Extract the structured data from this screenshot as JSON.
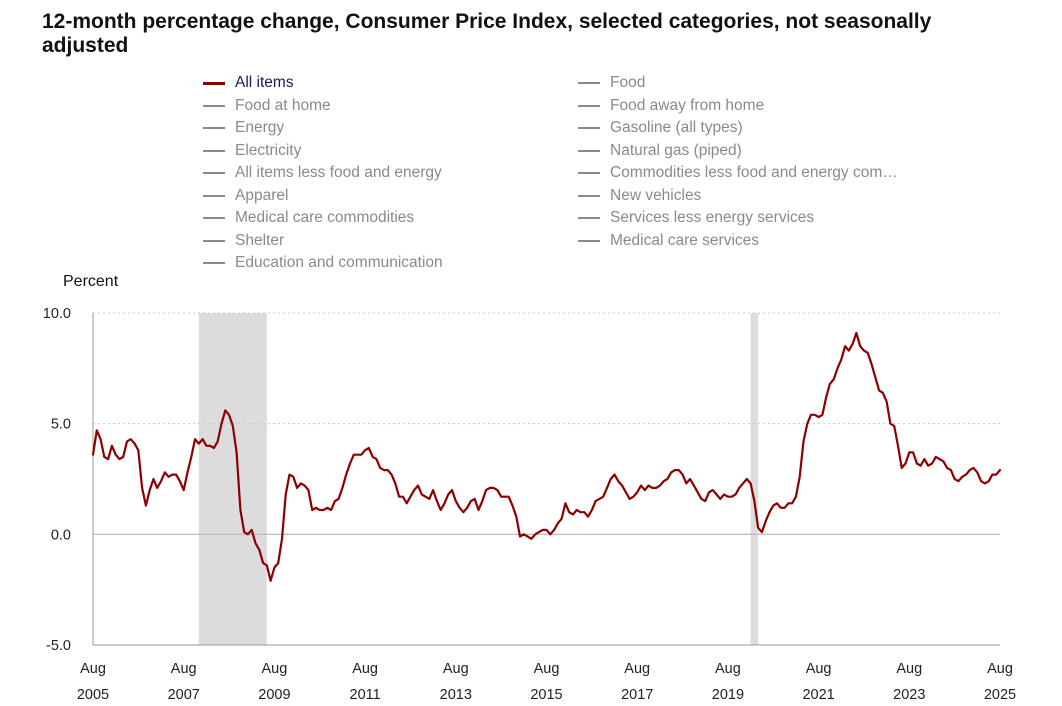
{
  "title": "12-month percentage change, Consumer Price Index, selected categories, not seasonally adjusted",
  "legend": {
    "left": [
      {
        "label": "All items",
        "active": true
      },
      {
        "label": "Food at home",
        "active": false
      },
      {
        "label": "Energy",
        "active": false
      },
      {
        "label": "Electricity",
        "active": false
      },
      {
        "label": "All items less food and energy",
        "active": false
      },
      {
        "label": "Apparel",
        "active": false
      },
      {
        "label": "Medical care commodities",
        "active": false
      },
      {
        "label": "Shelter",
        "active": false
      },
      {
        "label": "Education and communication",
        "active": false
      }
    ],
    "right": [
      {
        "label": "Food",
        "active": false
      },
      {
        "label": "Food away from home",
        "active": false
      },
      {
        "label": "Gasoline (all types)",
        "active": false
      },
      {
        "label": "Natural gas (piped)",
        "active": false
      },
      {
        "label": "Commodities less food and energy com…",
        "active": false
      },
      {
        "label": "New vehicles",
        "active": false
      },
      {
        "label": "Services less energy services",
        "active": false
      },
      {
        "label": "Medical care services",
        "active": false
      }
    ]
  },
  "colors": {
    "active_series": "#8b0000",
    "inactive": "#8a8a8a",
    "recession": "#dcdcdc",
    "grid": "#c8c8c8"
  },
  "chart_data": {
    "type": "line",
    "ylabel": "Percent",
    "ylim": [
      -5.0,
      10.0
    ],
    "yticks": [
      "10.0",
      "5.0",
      "0.0",
      "-5.0"
    ],
    "xlim": [
      "2005-08",
      "2025-08"
    ],
    "xticks": [
      {
        "month": "Aug",
        "year": "2005"
      },
      {
        "month": "Aug",
        "year": "2007"
      },
      {
        "month": "Aug",
        "year": "2009"
      },
      {
        "month": "Aug",
        "year": "2011"
      },
      {
        "month": "Aug",
        "year": "2013"
      },
      {
        "month": "Aug",
        "year": "2015"
      },
      {
        "month": "Aug",
        "year": "2017"
      },
      {
        "month": "Aug",
        "year": "2019"
      },
      {
        "month": "Aug",
        "year": "2021"
      },
      {
        "month": "Aug",
        "year": "2023"
      },
      {
        "month": "Aug",
        "year": "2025"
      }
    ],
    "recessions": [
      [
        "2007-12",
        "2009-06"
      ],
      [
        "2020-02",
        "2020-04"
      ]
    ],
    "series": [
      {
        "name": "All items",
        "points": [
          [
            "2005-08",
            3.6
          ],
          [
            "2005-09",
            4.7
          ],
          [
            "2005-10",
            4.3
          ],
          [
            "2005-11",
            3.5
          ],
          [
            "2005-12",
            3.4
          ],
          [
            "2006-01",
            4.0
          ],
          [
            "2006-02",
            3.6
          ],
          [
            "2006-03",
            3.4
          ],
          [
            "2006-04",
            3.5
          ],
          [
            "2006-05",
            4.2
          ],
          [
            "2006-06",
            4.3
          ],
          [
            "2006-07",
            4.1
          ],
          [
            "2006-08",
            3.8
          ],
          [
            "2006-09",
            2.1
          ],
          [
            "2006-10",
            1.3
          ],
          [
            "2006-11",
            2.0
          ],
          [
            "2006-12",
            2.5
          ],
          [
            "2007-01",
            2.1
          ],
          [
            "2007-02",
            2.4
          ],
          [
            "2007-03",
            2.8
          ],
          [
            "2007-04",
            2.6
          ],
          [
            "2007-05",
            2.7
          ],
          [
            "2007-06",
            2.7
          ],
          [
            "2007-07",
            2.4
          ],
          [
            "2007-08",
            2.0
          ],
          [
            "2007-09",
            2.8
          ],
          [
            "2007-10",
            3.5
          ],
          [
            "2007-11",
            4.3
          ],
          [
            "2007-12",
            4.1
          ],
          [
            "2008-01",
            4.3
          ],
          [
            "2008-02",
            4.0
          ],
          [
            "2008-03",
            4.0
          ],
          [
            "2008-04",
            3.9
          ],
          [
            "2008-05",
            4.2
          ],
          [
            "2008-06",
            5.0
          ],
          [
            "2008-07",
            5.6
          ],
          [
            "2008-08",
            5.4
          ],
          [
            "2008-09",
            4.9
          ],
          [
            "2008-10",
            3.7
          ],
          [
            "2008-11",
            1.1
          ],
          [
            "2008-12",
            0.1
          ],
          [
            "2009-01",
            0.0
          ],
          [
            "2009-02",
            0.2
          ],
          [
            "2009-03",
            -0.4
          ],
          [
            "2009-04",
            -0.7
          ],
          [
            "2009-05",
            -1.3
          ],
          [
            "2009-06",
            -1.4
          ],
          [
            "2009-07",
            -2.1
          ],
          [
            "2009-08",
            -1.5
          ],
          [
            "2009-09",
            -1.3
          ],
          [
            "2009-10",
            -0.2
          ],
          [
            "2009-11",
            1.8
          ],
          [
            "2009-12",
            2.7
          ],
          [
            "2010-01",
            2.6
          ],
          [
            "2010-02",
            2.1
          ],
          [
            "2010-03",
            2.3
          ],
          [
            "2010-04",
            2.2
          ],
          [
            "2010-05",
            2.0
          ],
          [
            "2010-06",
            1.1
          ],
          [
            "2010-07",
            1.2
          ],
          [
            "2010-08",
            1.1
          ],
          [
            "2010-09",
            1.1
          ],
          [
            "2010-10",
            1.2
          ],
          [
            "2010-11",
            1.1
          ],
          [
            "2010-12",
            1.5
          ],
          [
            "2011-01",
            1.6
          ],
          [
            "2011-02",
            2.1
          ],
          [
            "2011-03",
            2.7
          ],
          [
            "2011-04",
            3.2
          ],
          [
            "2011-05",
            3.6
          ],
          [
            "2011-06",
            3.6
          ],
          [
            "2011-07",
            3.6
          ],
          [
            "2011-08",
            3.8
          ],
          [
            "2011-09",
            3.9
          ],
          [
            "2011-10",
            3.5
          ],
          [
            "2011-11",
            3.4
          ],
          [
            "2011-12",
            3.0
          ],
          [
            "2012-01",
            2.9
          ],
          [
            "2012-02",
            2.9
          ],
          [
            "2012-03",
            2.7
          ],
          [
            "2012-04",
            2.3
          ],
          [
            "2012-05",
            1.7
          ],
          [
            "2012-06",
            1.7
          ],
          [
            "2012-07",
            1.4
          ],
          [
            "2012-08",
            1.7
          ],
          [
            "2012-09",
            2.0
          ],
          [
            "2012-10",
            2.2
          ],
          [
            "2012-11",
            1.8
          ],
          [
            "2012-12",
            1.7
          ],
          [
            "2013-01",
            1.6
          ],
          [
            "2013-02",
            2.0
          ],
          [
            "2013-03",
            1.5
          ],
          [
            "2013-04",
            1.1
          ],
          [
            "2013-05",
            1.4
          ],
          [
            "2013-06",
            1.8
          ],
          [
            "2013-07",
            2.0
          ],
          [
            "2013-08",
            1.5
          ],
          [
            "2013-09",
            1.2
          ],
          [
            "2013-10",
            1.0
          ],
          [
            "2013-11",
            1.2
          ],
          [
            "2013-12",
            1.5
          ],
          [
            "2014-01",
            1.6
          ],
          [
            "2014-02",
            1.1
          ],
          [
            "2014-03",
            1.5
          ],
          [
            "2014-04",
            2.0
          ],
          [
            "2014-05",
            2.1
          ],
          [
            "2014-06",
            2.1
          ],
          [
            "2014-07",
            2.0
          ],
          [
            "2014-08",
            1.7
          ],
          [
            "2014-09",
            1.7
          ],
          [
            "2014-10",
            1.7
          ],
          [
            "2014-11",
            1.3
          ],
          [
            "2014-12",
            0.8
          ],
          [
            "2015-01",
            -0.1
          ],
          [
            "2015-02",
            0.0
          ],
          [
            "2015-03",
            -0.1
          ],
          [
            "2015-04",
            -0.2
          ],
          [
            "2015-05",
            0.0
          ],
          [
            "2015-06",
            0.1
          ],
          [
            "2015-07",
            0.2
          ],
          [
            "2015-08",
            0.2
          ],
          [
            "2015-09",
            0.0
          ],
          [
            "2015-10",
            0.2
          ],
          [
            "2015-11",
            0.5
          ],
          [
            "2015-12",
            0.7
          ],
          [
            "2016-01",
            1.4
          ],
          [
            "2016-02",
            1.0
          ],
          [
            "2016-03",
            0.9
          ],
          [
            "2016-04",
            1.1
          ],
          [
            "2016-05",
            1.0
          ],
          [
            "2016-06",
            1.0
          ],
          [
            "2016-07",
            0.8
          ],
          [
            "2016-08",
            1.1
          ],
          [
            "2016-09",
            1.5
          ],
          [
            "2016-10",
            1.6
          ],
          [
            "2016-11",
            1.7
          ],
          [
            "2016-12",
            2.1
          ],
          [
            "2017-01",
            2.5
          ],
          [
            "2017-02",
            2.7
          ],
          [
            "2017-03",
            2.4
          ],
          [
            "2017-04",
            2.2
          ],
          [
            "2017-05",
            1.9
          ],
          [
            "2017-06",
            1.6
          ],
          [
            "2017-07",
            1.7
          ],
          [
            "2017-08",
            1.9
          ],
          [
            "2017-09",
            2.2
          ],
          [
            "2017-10",
            2.0
          ],
          [
            "2017-11",
            2.2
          ],
          [
            "2017-12",
            2.1
          ],
          [
            "2018-01",
            2.1
          ],
          [
            "2018-02",
            2.2
          ],
          [
            "2018-03",
            2.4
          ],
          [
            "2018-04",
            2.5
          ],
          [
            "2018-05",
            2.8
          ],
          [
            "2018-06",
            2.9
          ],
          [
            "2018-07",
            2.9
          ],
          [
            "2018-08",
            2.7
          ],
          [
            "2018-09",
            2.3
          ],
          [
            "2018-10",
            2.5
          ],
          [
            "2018-11",
            2.2
          ],
          [
            "2018-12",
            1.9
          ],
          [
            "2019-01",
            1.6
          ],
          [
            "2019-02",
            1.5
          ],
          [
            "2019-03",
            1.9
          ],
          [
            "2019-04",
            2.0
          ],
          [
            "2019-05",
            1.8
          ],
          [
            "2019-06",
            1.6
          ],
          [
            "2019-07",
            1.8
          ],
          [
            "2019-08",
            1.7
          ],
          [
            "2019-09",
            1.7
          ],
          [
            "2019-10",
            1.8
          ],
          [
            "2019-11",
            2.1
          ],
          [
            "2019-12",
            2.3
          ],
          [
            "2020-01",
            2.5
          ],
          [
            "2020-02",
            2.3
          ],
          [
            "2020-03",
            1.5
          ],
          [
            "2020-04",
            0.3
          ],
          [
            "2020-05",
            0.1
          ],
          [
            "2020-06",
            0.6
          ],
          [
            "2020-07",
            1.0
          ],
          [
            "2020-08",
            1.3
          ],
          [
            "2020-09",
            1.4
          ],
          [
            "2020-10",
            1.2
          ],
          [
            "2020-11",
            1.2
          ],
          [
            "2020-12",
            1.4
          ],
          [
            "2021-01",
            1.4
          ],
          [
            "2021-02",
            1.7
          ],
          [
            "2021-03",
            2.6
          ],
          [
            "2021-04",
            4.2
          ],
          [
            "2021-05",
            5.0
          ],
          [
            "2021-06",
            5.4
          ],
          [
            "2021-07",
            5.4
          ],
          [
            "2021-08",
            5.3
          ],
          [
            "2021-09",
            5.4
          ],
          [
            "2021-10",
            6.2
          ],
          [
            "2021-11",
            6.8
          ],
          [
            "2021-12",
            7.0
          ],
          [
            "2022-01",
            7.5
          ],
          [
            "2022-02",
            7.9
          ],
          [
            "2022-03",
            8.5
          ],
          [
            "2022-04",
            8.3
          ],
          [
            "2022-05",
            8.6
          ],
          [
            "2022-06",
            9.1
          ],
          [
            "2022-07",
            8.5
          ],
          [
            "2022-08",
            8.3
          ],
          [
            "2022-09",
            8.2
          ],
          [
            "2022-10",
            7.7
          ],
          [
            "2022-11",
            7.1
          ],
          [
            "2022-12",
            6.5
          ],
          [
            "2023-01",
            6.4
          ],
          [
            "2023-02",
            6.0
          ],
          [
            "2023-03",
            5.0
          ],
          [
            "2023-04",
            4.9
          ],
          [
            "2023-05",
            4.0
          ],
          [
            "2023-06",
            3.0
          ],
          [
            "2023-07",
            3.2
          ],
          [
            "2023-08",
            3.7
          ],
          [
            "2023-09",
            3.7
          ],
          [
            "2023-10",
            3.2
          ],
          [
            "2023-11",
            3.1
          ],
          [
            "2023-12",
            3.4
          ],
          [
            "2024-01",
            3.1
          ],
          [
            "2024-02",
            3.2
          ],
          [
            "2024-03",
            3.5
          ],
          [
            "2024-04",
            3.4
          ],
          [
            "2024-05",
            3.3
          ],
          [
            "2024-06",
            3.0
          ],
          [
            "2024-07",
            2.9
          ],
          [
            "2024-08",
            2.5
          ],
          [
            "2024-09",
            2.4
          ],
          [
            "2024-10",
            2.6
          ],
          [
            "2024-11",
            2.7
          ],
          [
            "2024-12",
            2.9
          ],
          [
            "2025-01",
            3.0
          ],
          [
            "2025-02",
            2.8
          ],
          [
            "2025-03",
            2.4
          ],
          [
            "2025-04",
            2.3
          ],
          [
            "2025-05",
            2.4
          ],
          [
            "2025-06",
            2.7
          ],
          [
            "2025-07",
            2.7
          ],
          [
            "2025-08",
            2.9
          ]
        ]
      }
    ]
  }
}
